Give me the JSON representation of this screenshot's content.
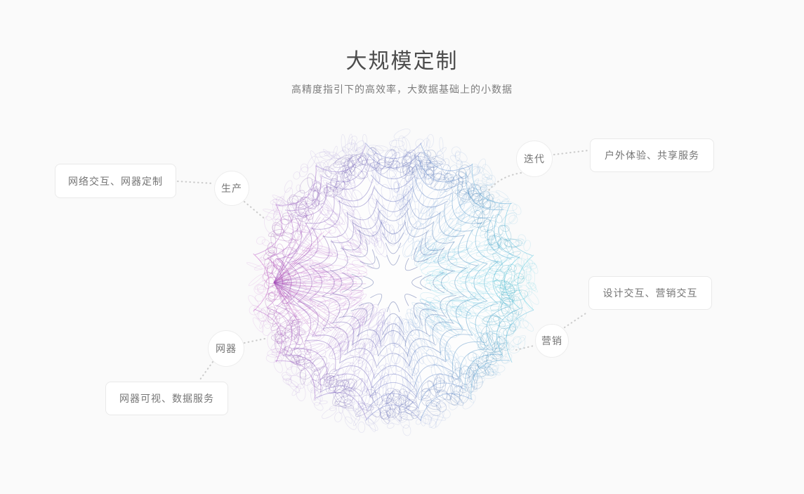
{
  "header": {
    "title": "大规模定制",
    "subtitle": "高精度指引下的高效率，大数据基础上的小数据"
  },
  "diagram": {
    "cards": [
      {
        "id": "network",
        "label": "网络交互、网器定制"
      },
      {
        "id": "outdoor",
        "label": "户外体验、共享服务"
      },
      {
        "id": "design",
        "label": "设计交互、营销交互"
      },
      {
        "id": "data",
        "label": "网器可视、数据服务"
      }
    ],
    "nodes": [
      {
        "id": "production",
        "label": "生产"
      },
      {
        "id": "iteration",
        "label": "迭代"
      },
      {
        "id": "marketing",
        "label": "营销"
      },
      {
        "id": "device",
        "label": "网器"
      }
    ]
  },
  "colors": {
    "background": "#fafafa",
    "title_text": "#4c4c4c",
    "subtitle_text": "#7d7d7d",
    "card_border": "#e9e9e9",
    "card_text": "#757575",
    "connector": "#cccccc",
    "sphere": {
      "left_magenta": "#c453c8",
      "right_cyan": "#41c8e0",
      "axis_indigo": "#6065c2",
      "core_slate": "#5a6aa8",
      "fan_pink": "#c050b8"
    }
  }
}
